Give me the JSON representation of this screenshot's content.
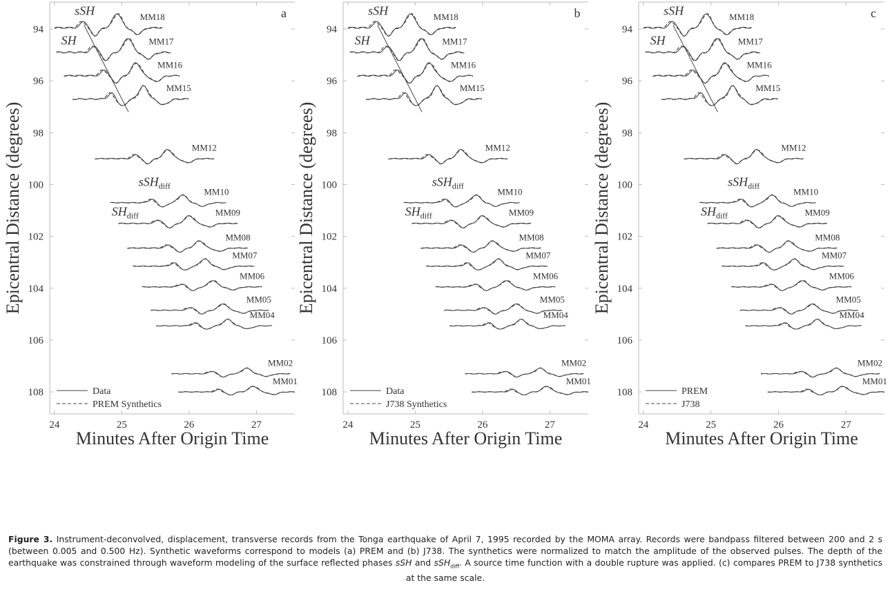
{
  "chart_data": [
    {
      "panel": "a",
      "type": "line",
      "ylabel": "Epicentral Distance (degrees)",
      "xlabel": "Minutes After Origin Time",
      "legend": [
        {
          "label": "Data",
          "style": "solid"
        },
        {
          "label": "PREM Synthetics",
          "style": "dashed"
        }
      ],
      "legend_position": "bottom-left"
    },
    {
      "panel": "b",
      "type": "line",
      "ylabel": "Epicentral Distance (degrees)",
      "xlabel": "Minutes After Origin Time",
      "legend": [
        {
          "label": "Data",
          "style": "solid"
        },
        {
          "label": "J738 Synthetics",
          "style": "dashed"
        }
      ],
      "legend_position": "bottom-left"
    },
    {
      "panel": "c",
      "type": "line",
      "ylabel": "Epicentral Distance (degrees)",
      "xlabel": "Minutes After Origin Time",
      "legend": [
        {
          "label": "PREM",
          "style": "solid"
        },
        {
          "label": "J738",
          "style": "dashed"
        }
      ],
      "legend_position": "bottom-left"
    }
  ],
  "axes": {
    "xlim": [
      23.93,
      27.57
    ],
    "ylim": [
      108.85,
      92.96
    ],
    "xticks": [
      "24",
      "25",
      "26",
      "27"
    ],
    "yticks": [
      "94",
      "96",
      "98",
      "100",
      "102",
      "104",
      "106",
      "108"
    ],
    "y_inverted": true
  },
  "stations": [
    {
      "name": "MM18",
      "distance": 93.95,
      "start": 24.0,
      "end": 25.6,
      "p1": 24.44,
      "p2": 24.93,
      "amp": 0.55
    },
    {
      "name": "MM17",
      "distance": 94.9,
      "start": 24.03,
      "end": 25.73,
      "p1": 24.6,
      "p2": 25.09,
      "amp": 0.55
    },
    {
      "name": "MM16",
      "distance": 95.8,
      "start": 24.14,
      "end": 25.86,
      "p1": 24.75,
      "p2": 25.21,
      "amp": 0.5
    },
    {
      "name": "MM15",
      "distance": 96.7,
      "start": 24.27,
      "end": 25.99,
      "p1": 24.85,
      "p2": 25.32,
      "amp": 0.5
    },
    {
      "name": "MM12",
      "distance": 99.0,
      "start": 24.6,
      "end": 26.37,
      "p1": 25.22,
      "p2": 25.68,
      "amp": 0.35
    },
    {
      "name": "MM10",
      "distance": 100.7,
      "start": 24.83,
      "end": 26.55,
      "p1": 25.45,
      "p2": 25.9,
      "amp": 0.3
    },
    {
      "name": "MM09",
      "distance": 101.5,
      "start": 24.95,
      "end": 26.72,
      "p1": 25.55,
      "p2": 26.0,
      "amp": 0.3
    },
    {
      "name": "MM08",
      "distance": 102.45,
      "start": 25.08,
      "end": 26.87,
      "p1": 25.7,
      "p2": 26.15,
      "amp": 0.28
    },
    {
      "name": "MM07",
      "distance": 103.15,
      "start": 25.16,
      "end": 26.97,
      "p1": 25.78,
      "p2": 26.23,
      "amp": 0.28
    },
    {
      "name": "MM06",
      "distance": 103.95,
      "start": 25.3,
      "end": 27.08,
      "p1": 25.9,
      "p2": 26.35,
      "amp": 0.25
    },
    {
      "name": "MM05",
      "distance": 104.85,
      "start": 25.43,
      "end": 27.18,
      "p1": 26.03,
      "p2": 26.5,
      "amp": 0.25
    },
    {
      "name": "MM04",
      "distance": 105.45,
      "start": 25.51,
      "end": 27.23,
      "p1": 26.1,
      "p2": 26.57,
      "amp": 0.25
    },
    {
      "name": "MM02",
      "distance": 107.3,
      "start": 25.74,
      "end": 27.5,
      "p1": 26.35,
      "p2": 26.85,
      "amp": 0.22
    },
    {
      "name": "MM01",
      "distance": 108.0,
      "start": 25.84,
      "end": 27.57,
      "p1": 26.45,
      "p2": 26.95,
      "amp": 0.22
    }
  ],
  "phase_labels": {
    "sSH": "sSH",
    "SH": "SH",
    "sSHdiff": "sSH",
    "SHdiff": "SH",
    "diff": "diff"
  },
  "caption": {
    "label": "Figure 3.",
    "text1": " Instrument-deconvolved, displacement, transverse records from the Tonga earthquake of April 7, 1995 recorded by the MOMA array. Records were bandpass filtered between 200 and 2 s (between 0.005 and 0.500 Hz). Synthetic waveforms correspond to models (a) PREM and (b) J738. The synthetics were normalized to match the amplitude of the observed pulses. The depth of the earthquake was constrained through waveform modeling of the surface reflected phases ",
    "phase1": "sSH",
    "and": " and ",
    "phase2": "sSH",
    "sub": "diff",
    "text2": ". A source time function with a double rupture was applied. (c) compares PREM to J738 synthetics at the same scale."
  },
  "colors": {
    "trace": "#444444",
    "axis": "#bbbbbb",
    "text": "#333333"
  }
}
